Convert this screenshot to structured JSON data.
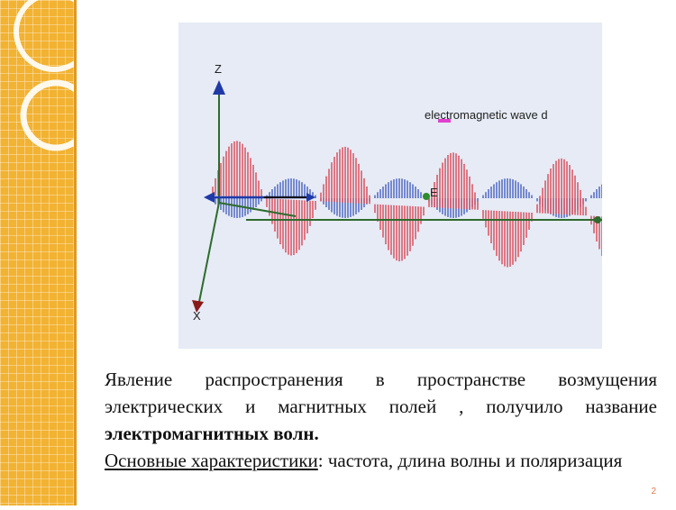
{
  "slide": {
    "page_number": "2",
    "figure": {
      "caption": "electromagnetic wave d",
      "axes": {
        "z": "Z",
        "x": "X",
        "e": "E"
      }
    },
    "paragraph1": "Явление распространения в пространстве возмущения электрических и магнитных полей , получило название",
    "paragraph1_bold": "электромагнитных волн.",
    "paragraph2_underlined": "Основные характеристики",
    "paragraph2_rest": ": частота, длина волны и поляризация"
  },
  "colors": {
    "sidebar": "#f2b232",
    "electric_wave": "#d42b3a",
    "magnetic_wave": "#2a48b4",
    "axis": "#2e6b2e"
  }
}
